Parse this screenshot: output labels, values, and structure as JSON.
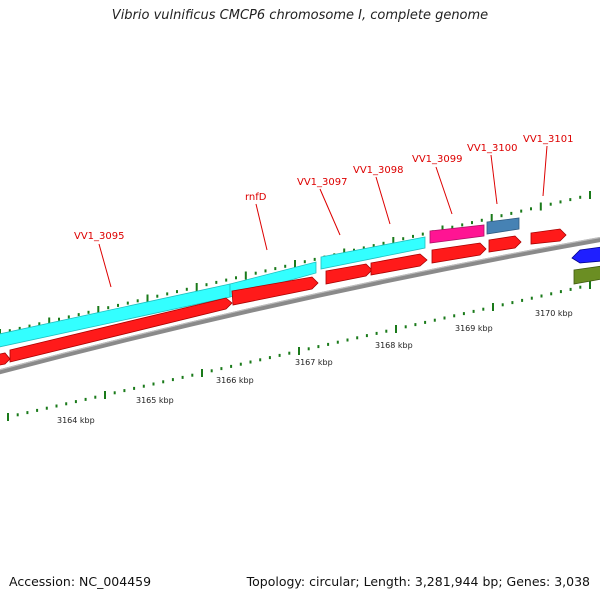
{
  "title": "Vibrio vulnificus CMCP6 chromosome I, complete genome",
  "footer": {
    "accession": "Accession: NC_004459",
    "summary": "Topology: circular; Length: 3,281,944 bp; Genes: 3,038"
  },
  "colors": {
    "cds": "#ff1a1a",
    "rna_cyan": "#33ffff",
    "magenta": "#ff1493",
    "steelblue": "#4682b4",
    "blue": "#1f1fff",
    "olive": "#6b8e23",
    "backbone": "#808080",
    "tick": "#1a7a1a",
    "label": "#dd0000"
  },
  "gene_labels": [
    "VV1_3095",
    "rnfD",
    "VV1_3097",
    "VV1_3098",
    "VV1_3099",
    "VV1_3100",
    "VV1_3101"
  ],
  "scale_labels": [
    "3164 kbp",
    "3165 kbp",
    "3166 kbp",
    "3167 kbp",
    "3168 kbp",
    "3169 kbp",
    "3170 kbp"
  ]
}
